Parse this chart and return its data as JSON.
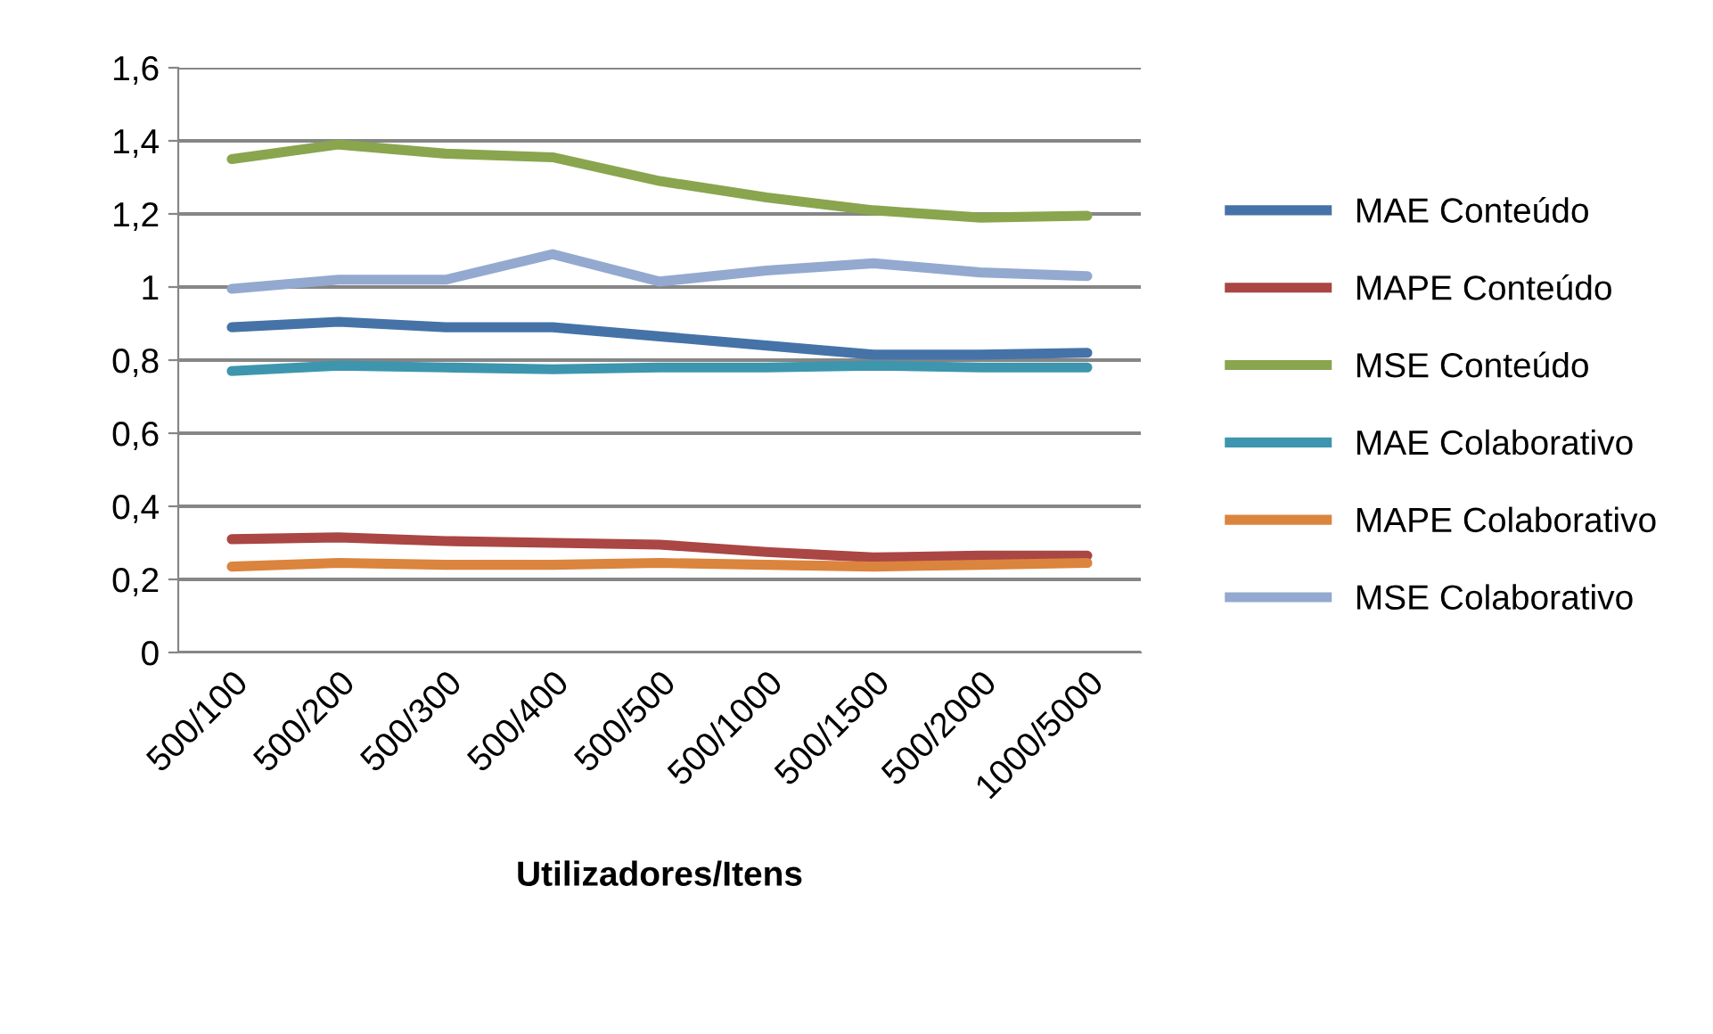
{
  "chart_data": {
    "type": "line",
    "xlabel": "Utilizadores/Itens",
    "categories": [
      "500/100",
      "500/200",
      "500/300",
      "500/400",
      "500/500",
      "500/1000",
      "500/1500",
      "500/2000",
      "1000/5000"
    ],
    "ylim": [
      0,
      1.6
    ],
    "yticks": [
      0,
      {
        "value": 0.2,
        "label": "0,2"
      },
      {
        "value": 0.4,
        "label": "0,4"
      },
      {
        "value": 0.6,
        "label": "0,6"
      },
      {
        "value": 0.8,
        "label": "0,8"
      },
      1,
      {
        "value": 1.2,
        "label": "1,2"
      },
      {
        "value": 1.4,
        "label": "1,4"
      },
      {
        "value": 1.6,
        "label": "1,6"
      }
    ],
    "grid": "y",
    "legend": "right",
    "marker": "none",
    "line_style": "solid",
    "series": [
      {
        "name": "MAE Conteúdo",
        "color": "#4573a7",
        "values": [
          0.89,
          0.905,
          0.89,
          0.89,
          0.865,
          0.84,
          0.815,
          0.815,
          0.82
        ]
      },
      {
        "name": "MAPE Conteúdo",
        "color": "#aa4643",
        "values": [
          0.31,
          0.315,
          0.305,
          0.3,
          0.295,
          0.275,
          0.26,
          0.265,
          0.265
        ]
      },
      {
        "name": "MSE Conteúdo",
        "color": "#89a54e",
        "values": [
          1.35,
          1.39,
          1.365,
          1.355,
          1.29,
          1.245,
          1.21,
          1.19,
          1.195
        ]
      },
      {
        "name": "MAE Colaborativo",
        "color": "#3d96ae",
        "values": [
          0.77,
          0.785,
          0.78,
          0.775,
          0.78,
          0.78,
          0.785,
          0.78,
          0.78
        ]
      },
      {
        "name": "MAPE Colaborativo",
        "color": "#db843d",
        "values": [
          0.235,
          0.245,
          0.24,
          0.24,
          0.245,
          0.24,
          0.235,
          0.24,
          0.245
        ]
      },
      {
        "name": "MSE Colaborativo",
        "color": "#93a9cf",
        "values": [
          0.995,
          1.02,
          1.02,
          1.09,
          1.015,
          1.045,
          1.065,
          1.04,
          1.03
        ]
      }
    ]
  }
}
